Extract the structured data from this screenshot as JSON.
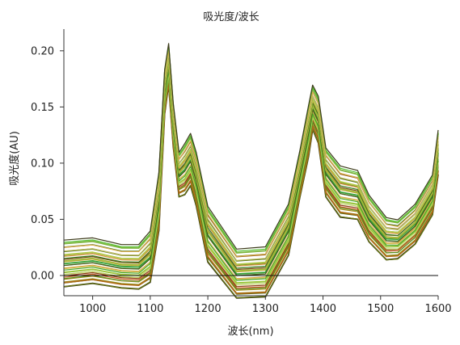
{
  "chart_data": {
    "type": "line",
    "title": "吸光度/波长",
    "xlabel": "波长(nm)",
    "ylabel": "吸光度(AU)",
    "xlim": [
      950,
      1600
    ],
    "ylim": [
      -0.018,
      0.215
    ],
    "x_ticks": [
      1000,
      1100,
      1200,
      1300,
      1400,
      1500,
      1600
    ],
    "y_ticks": [
      0.0,
      0.05,
      0.1,
      0.15,
      0.2
    ],
    "y_tick_labels": [
      "0.00",
      "0.05",
      "0.10",
      "0.15",
      "0.20"
    ],
    "zero_line": true,
    "grid": false,
    "legend": "none",
    "x": [
      950,
      1000,
      1050,
      1080,
      1100,
      1115,
      1125,
      1132,
      1140,
      1150,
      1160,
      1170,
      1180,
      1200,
      1250,
      1300,
      1340,
      1360,
      1375,
      1382,
      1392,
      1405,
      1430,
      1460,
      1480,
      1510,
      1530,
      1560,
      1590,
      1600
    ],
    "reference_profiles": {
      "high": [
        0.03,
        0.032,
        0.026,
        0.026,
        0.038,
        0.09,
        0.182,
        0.205,
        0.152,
        0.108,
        0.116,
        0.125,
        0.108,
        0.06,
        0.022,
        0.024,
        0.062,
        0.11,
        0.15,
        0.168,
        0.158,
        0.112,
        0.096,
        0.092,
        0.07,
        0.05,
        0.048,
        0.062,
        0.088,
        0.128
      ],
      "low": [
        -0.01,
        -0.007,
        -0.011,
        -0.012,
        -0.006,
        0.04,
        0.144,
        0.17,
        0.115,
        0.07,
        0.072,
        0.08,
        0.062,
        0.012,
        -0.02,
        -0.019,
        0.018,
        0.07,
        0.106,
        0.13,
        0.118,
        0.07,
        0.052,
        0.05,
        0.03,
        0.014,
        0.015,
        0.028,
        0.054,
        0.09
      ]
    },
    "series_count": 34,
    "series_colors": [
      "#2e2a14",
      "#3d6b12",
      "#6a7a10",
      "#8a9a1c",
      "#a88e1a",
      "#b06a18",
      "#c0581a",
      "#8c3a14",
      "#5a8e20",
      "#78b22a",
      "#9cc63c",
      "#b8d058",
      "#cfa030",
      "#d8c060",
      "#46a628",
      "#34a034",
      "#1f8f28",
      "#4e5a1a",
      "#7a4a14",
      "#c8a83a",
      "#a4b83a",
      "#6c8c24",
      "#3a7a1c",
      "#d4903a",
      "#8a6a1a",
      "#b4c84a",
      "#5e7a20",
      "#9a5a1c",
      "#c4c26a",
      "#2c6e1a",
      "#7ab43a",
      "#e0b050",
      "#58c034",
      "#3c3a1a"
    ]
  }
}
